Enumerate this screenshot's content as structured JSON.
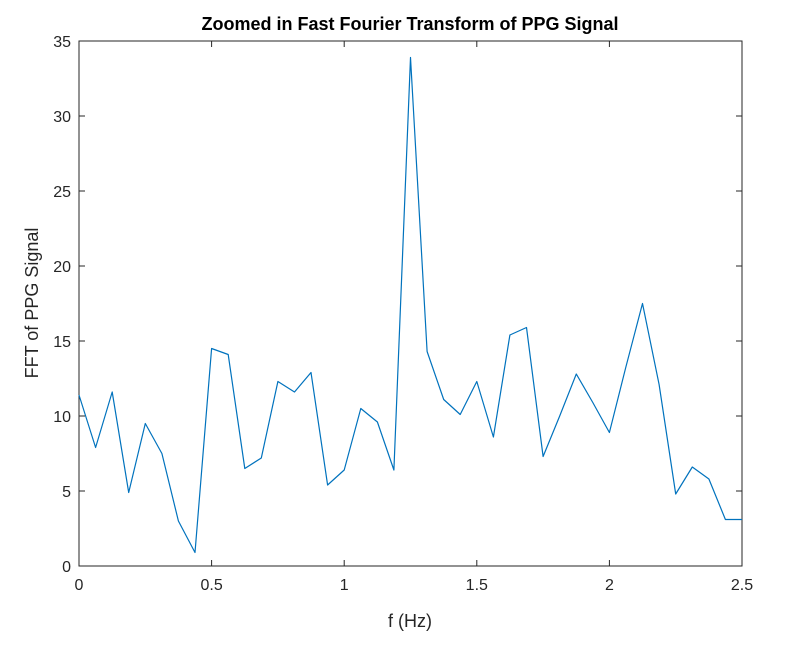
{
  "chart_data": {
    "type": "line",
    "title": "Zoomed in Fast Fourier Transform of PPG Signal",
    "xlabel": "f (Hz)",
    "ylabel": "FFT of PPG Signal",
    "xlim": [
      0,
      2.5
    ],
    "ylim": [
      0,
      35
    ],
    "xticks": [
      0,
      0.5,
      1,
      1.5,
      2,
      2.5
    ],
    "xtick_labels": [
      "0",
      "0.5",
      "1",
      "1.5",
      "2",
      "2.5"
    ],
    "yticks": [
      0,
      5,
      10,
      15,
      20,
      25,
      30,
      35
    ],
    "ytick_labels": [
      "0",
      "5",
      "10",
      "15",
      "20",
      "25",
      "30",
      "35"
    ],
    "grid": false,
    "line_color": "#0072BD",
    "series": [
      {
        "x": [
          0,
          0.0625,
          0.125,
          0.1875,
          0.25,
          0.3125,
          0.375,
          0.4375,
          0.5,
          0.5625,
          0.625,
          0.6875,
          0.75,
          0.8125,
          0.875,
          0.9375,
          1.0,
          1.0625,
          1.125,
          1.1875,
          1.25,
          1.3125,
          1.375,
          1.4375,
          1.5,
          1.5625,
          1.625,
          1.6875,
          1.75,
          1.8125,
          1.875,
          1.9375,
          2.0,
          2.0625,
          2.125,
          2.1875,
          2.25,
          2.3125,
          2.375,
          2.4375,
          2.5
        ],
        "y": [
          11.4,
          7.9,
          11.6,
          4.9,
          9.5,
          7.5,
          3.0,
          0.9,
          14.5,
          14.1,
          6.5,
          7.2,
          12.3,
          11.6,
          12.9,
          5.4,
          6.4,
          10.5,
          9.6,
          6.4,
          33.9,
          14.3,
          11.1,
          10.1,
          12.3,
          8.6,
          15.4,
          15.9,
          7.3,
          10.0,
          12.8,
          10.9,
          8.9,
          13.3,
          17.5,
          12.1,
          4.8,
          6.6,
          5.8,
          3.1,
          3.1
        ]
      }
    ]
  }
}
